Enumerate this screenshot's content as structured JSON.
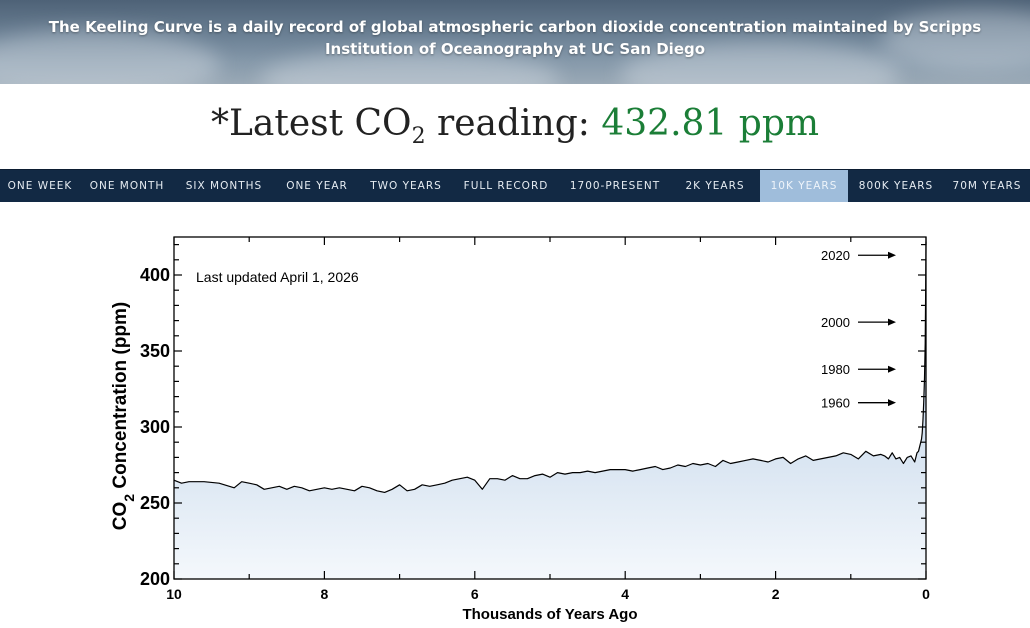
{
  "banner": {
    "text": "The Keeling Curve is a daily record of global atmospheric carbon dioxide concentration maintained by Scripps Institution of Oceanography at UC San Diego"
  },
  "reading": {
    "prefix": "*Latest CO",
    "subscript": "2",
    "middle": " reading: ",
    "value": "432.81 ppm",
    "value_color": "#1b7e37"
  },
  "nav": {
    "items": [
      {
        "label": "ONE WEEK",
        "active": false
      },
      {
        "label": "ONE MONTH",
        "active": false
      },
      {
        "label": "SIX MONTHS",
        "active": false
      },
      {
        "label": "ONE YEAR",
        "active": false
      },
      {
        "label": "TWO YEARS",
        "active": false
      },
      {
        "label": "FULL RECORD",
        "active": false
      },
      {
        "label": "1700-PRESENT",
        "active": false
      },
      {
        "label": "2K YEARS",
        "active": false
      },
      {
        "label": "10K YEARS",
        "active": true
      },
      {
        "label": "800K YEARS",
        "active": false
      },
      {
        "label": "70M YEARS",
        "active": false
      }
    ],
    "background": "#122944",
    "active_color": "#9fbddb"
  },
  "chart_data": {
    "type": "area",
    "title": "",
    "annotation": "Last updated April 1, 2026",
    "xlabel": "Thousands of Years Ago",
    "ylabel_parts": {
      "main": "CO",
      "sub": "2",
      "rest": " Concentration (ppm)"
    },
    "xlim": [
      10,
      0
    ],
    "ylim": [
      200,
      425
    ],
    "x_reversed": true,
    "x_ticks": [
      10,
      8,
      6,
      4,
      2,
      0
    ],
    "y_ticks": [
      200,
      250,
      300,
      350,
      400
    ],
    "grid": false,
    "legend": "none",
    "fill_color_top": "#a9c3df",
    "fill_color_bottom": "#f4f8fc",
    "line_color": "#000000",
    "series": [
      {
        "x": [
          10.0,
          9.9,
          9.8,
          9.6,
          9.4,
          9.2,
          9.1,
          9.0,
          8.9,
          8.8,
          8.7,
          8.6,
          8.5,
          8.4,
          8.3,
          8.2,
          8.1,
          8.0,
          7.9,
          7.8,
          7.7,
          7.6,
          7.5,
          7.4,
          7.3,
          7.2,
          7.1,
          7.0,
          6.9,
          6.8,
          6.7,
          6.6,
          6.5,
          6.4,
          6.3,
          6.2,
          6.1,
          6.0,
          5.9,
          5.8,
          5.7,
          5.6,
          5.5,
          5.4,
          5.3,
          5.2,
          5.1,
          5.0,
          4.9,
          4.8,
          4.7,
          4.6,
          4.5,
          4.4,
          4.3,
          4.2,
          4.1,
          4.0,
          3.9,
          3.8,
          3.7,
          3.6,
          3.5,
          3.4,
          3.3,
          3.2,
          3.1,
          3.0,
          2.9,
          2.8,
          2.7,
          2.6,
          2.5,
          2.4,
          2.3,
          2.2,
          2.1,
          2.0,
          1.9,
          1.8,
          1.7,
          1.6,
          1.5,
          1.4,
          1.3,
          1.2,
          1.1,
          1.0,
          0.9,
          0.8,
          0.7,
          0.6,
          0.55,
          0.5,
          0.45,
          0.4,
          0.35,
          0.3,
          0.25,
          0.2,
          0.15,
          0.12,
          0.1,
          0.08,
          0.06,
          0.05,
          0.04,
          0.03,
          0.02,
          0.01,
          0.005,
          0.0
        ],
        "y": [
          265,
          263,
          264,
          264,
          263,
          260,
          264,
          263,
          262,
          259,
          260,
          261,
          259,
          261,
          260,
          258,
          259,
          260,
          259,
          260,
          259,
          258,
          261,
          260,
          258,
          257,
          259,
          262,
          258,
          259,
          262,
          261,
          262,
          263,
          265,
          266,
          267,
          265,
          259,
          266,
          266,
          265,
          268,
          266,
          266,
          268,
          269,
          267,
          270,
          269,
          270,
          270,
          271,
          270,
          271,
          272,
          272,
          272,
          271,
          272,
          273,
          274,
          272,
          273,
          275,
          274,
          276,
          275,
          276,
          274,
          278,
          276,
          277,
          278,
          279,
          278,
          277,
          279,
          280,
          276,
          279,
          281,
          278,
          279,
          280,
          281,
          283,
          282,
          279,
          284,
          281,
          282,
          281,
          279,
          283,
          279,
          280,
          276,
          280,
          281,
          277,
          283,
          284,
          288,
          292,
          296,
          305,
          316,
          332,
          355,
          385,
          422
        ]
      }
    ],
    "arrow_labels": [
      {
        "label": "2020",
        "ppm": 413
      },
      {
        "label": "2000",
        "ppm": 369
      },
      {
        "label": "1980",
        "ppm": 338
      },
      {
        "label": "1960",
        "ppm": 316
      }
    ]
  }
}
